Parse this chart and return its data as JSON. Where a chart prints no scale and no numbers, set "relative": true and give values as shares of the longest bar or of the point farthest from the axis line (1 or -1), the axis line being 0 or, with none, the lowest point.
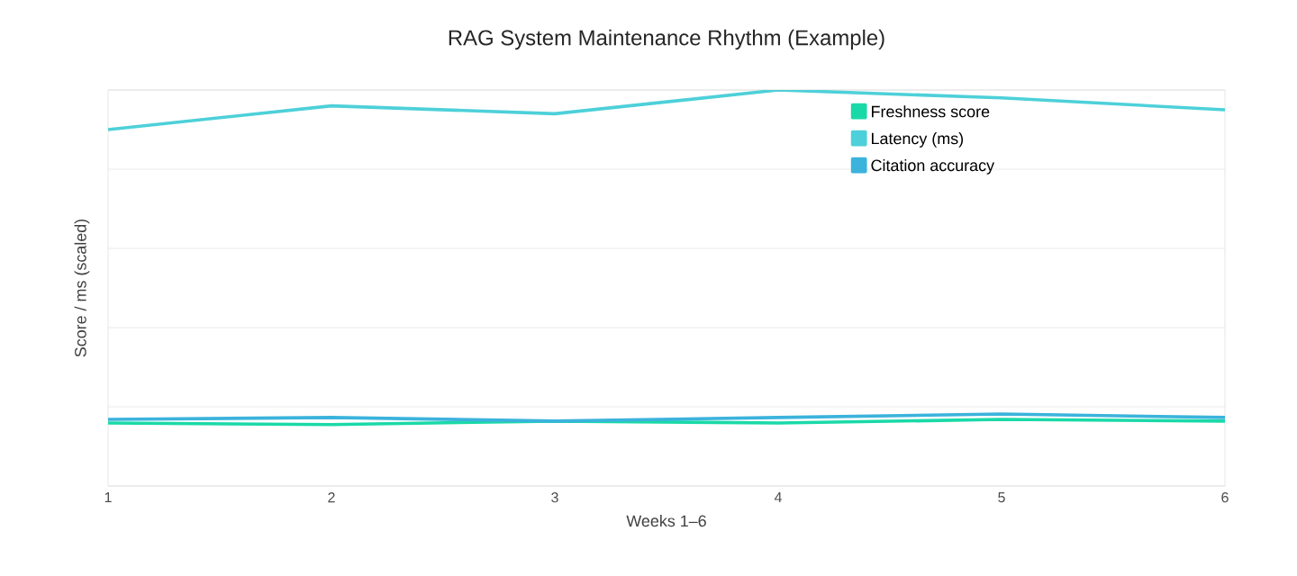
{
  "chart_data": {
    "type": "line",
    "title": "RAG System Maintenance Rhythm (Example)",
    "xlabel": "Weeks 1–6",
    "ylabel": "Score / ms (scaled)",
    "categories": [
      "1",
      "2",
      "3",
      "4",
      "5",
      "6"
    ],
    "relative": true,
    "grid": "y",
    "legend": "top right",
    "marker": "none",
    "line_style": "solid",
    "series": [
      {
        "name": "Freshness score",
        "color": "#1ad9a8",
        "values": [
          0.159,
          0.155,
          0.164,
          0.159,
          0.168,
          0.164
        ]
      },
      {
        "name": "Latency (ms)",
        "color": "#4dd0d9",
        "values": [
          0.9,
          0.96,
          0.94,
          1.0,
          0.98,
          0.95
        ]
      },
      {
        "name": "Citation accuracy",
        "color": "#3bb3dc",
        "values": [
          0.168,
          0.173,
          0.164,
          0.173,
          0.182,
          0.173
        ]
      }
    ]
  }
}
